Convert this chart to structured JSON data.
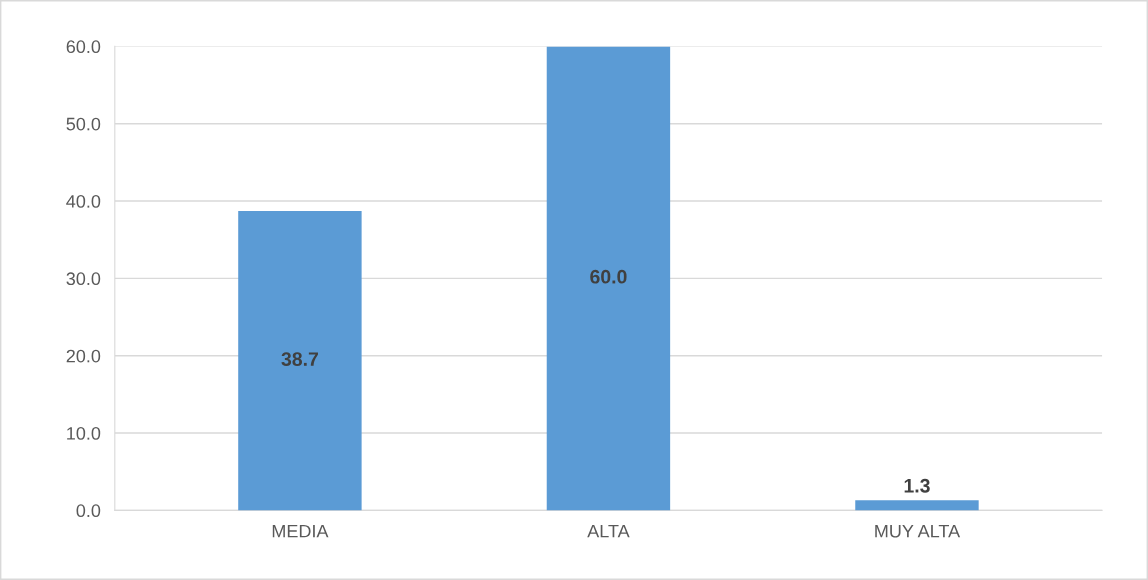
{
  "chart_data": {
    "type": "bar",
    "categories": [
      "MEDIA",
      "ALTA",
      "MUY ALTA"
    ],
    "values": [
      38.7,
      60.0,
      1.3
    ],
    "value_labels": [
      "38.7",
      "60.0",
      "1.3"
    ],
    "color": "#5b9bd5",
    "ylim": [
      0,
      60
    ],
    "yticks": [
      {
        "value": 0,
        "label": "0.0"
      },
      {
        "value": 10,
        "label": "10.0"
      },
      {
        "value": 20,
        "label": "20.0"
      },
      {
        "value": 30,
        "label": "30.0"
      },
      {
        "value": 40,
        "label": "40.0"
      },
      {
        "value": 50,
        "label": "50.0"
      },
      {
        "value": 60,
        "label": "60.0"
      }
    ],
    "grid": "y",
    "legend": false
  }
}
